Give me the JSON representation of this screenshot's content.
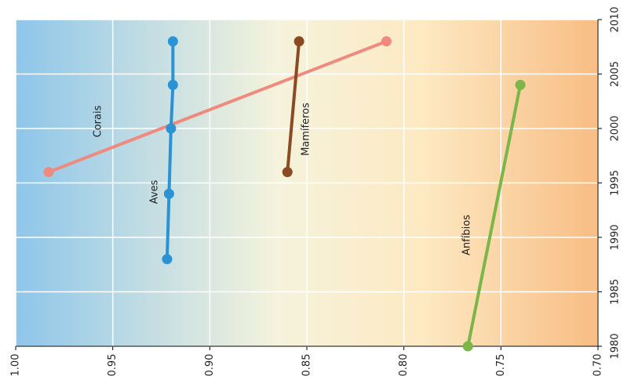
{
  "chart_data": {
    "type": "line",
    "xlim": [
      1980,
      2010
    ],
    "xticks": [
      1980,
      1985,
      1990,
      1995,
      2000,
      2005,
      2010
    ],
    "ylim": [
      1,
      0.7
    ],
    "yticks": [
      {
        "value": 1,
        "label": "1.00"
      },
      0.95,
      {
        "value": 0.9,
        "label": "0.90"
      },
      0.85,
      {
        "value": 0.8,
        "label": "0.80"
      },
      0.75,
      {
        "value": 0.7,
        "label": "0.70"
      }
    ],
    "grid": true,
    "series": [
      {
        "name": "Corais",
        "color": "#f08a7e",
        "x": [
          1996,
          2008
        ],
        "values": [
          0.983,
          0.809
        ]
      },
      {
        "name": "Aves",
        "color": "#2a93d5",
        "x": [
          1988,
          1994,
          2000,
          2004,
          2008
        ],
        "values": [
          0.922,
          0.921,
          0.92,
          0.919,
          0.919
        ]
      },
      {
        "name": "Mamíferos",
        "color": "#8b4a22",
        "x": [
          1996,
          2008
        ],
        "values": [
          0.86,
          0.854
        ]
      },
      {
        "name": "Anfíbios",
        "color": "#7ab648",
        "x": [
          1980,
          2004
        ],
        "values": [
          0.767,
          0.74
        ]
      }
    ]
  }
}
